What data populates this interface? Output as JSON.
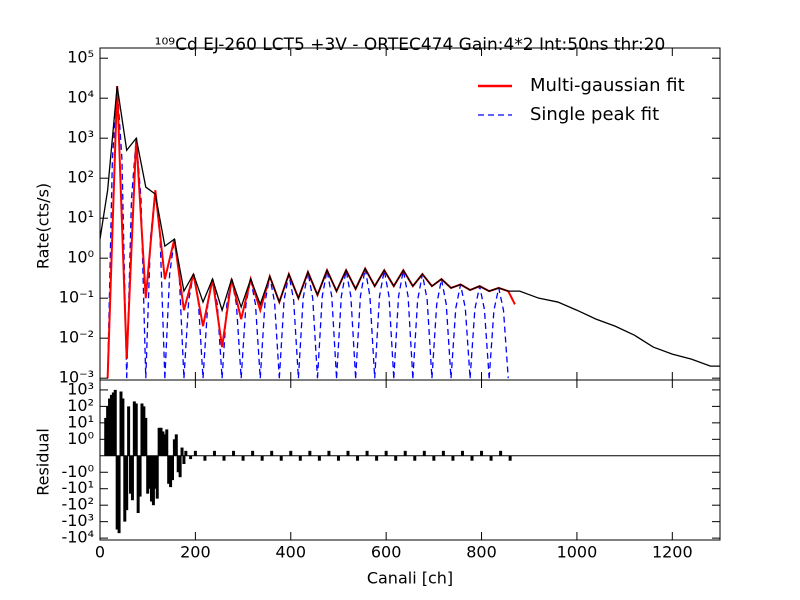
{
  "chart_data": [
    {
      "type": "line",
      "title": "¹⁰⁹Cd EJ-260 LCT5 +3V - ORTEC474 Gain:4*2 Int:50ns thr:20",
      "ylabel": "Rate(cts/s)",
      "xlim": [
        0,
        1300
      ],
      "ylim": [
        0.0009,
        180000
      ],
      "log_y": true,
      "legend": "upper right",
      "yticks": [
        {
          "value": 0.001,
          "label": "10⁻³"
        },
        {
          "value": 0.01,
          "label": "10⁻²"
        },
        {
          "value": 0.1,
          "label": "10⁻¹"
        },
        {
          "value": 1,
          "label": "10⁰"
        },
        {
          "value": 10,
          "label": "10¹"
        },
        {
          "value": 100,
          "label": "10²"
        },
        {
          "value": 1000,
          "label": "10³"
        },
        {
          "value": 10000,
          "label": "10⁴"
        },
        {
          "value": 100000,
          "label": "10⁵"
        }
      ],
      "series": [
        {
          "color": "#000000",
          "x": [
            0,
            16,
            36,
            56,
            76,
            96,
            116,
            136,
            156,
            176,
            196,
            216,
            236,
            256,
            276,
            296,
            316,
            336,
            356,
            376,
            396,
            416,
            436,
            456,
            476,
            496,
            516,
            536,
            556,
            576,
            596,
            616,
            636,
            656,
            676,
            696,
            716,
            736,
            756,
            776,
            796,
            816,
            836,
            856,
            880,
            920,
            960,
            1000,
            1040,
            1080,
            1120,
            1160,
            1200,
            1240,
            1280,
            1300
          ],
          "values": [
            3,
            50,
            20000,
            500,
            1000,
            60,
            40,
            2,
            3,
            0.15,
            0.4,
            0.08,
            0.3,
            0.05,
            0.3,
            0.06,
            0.3,
            0.07,
            0.35,
            0.08,
            0.4,
            0.1,
            0.45,
            0.12,
            0.5,
            0.15,
            0.5,
            0.17,
            0.55,
            0.2,
            0.5,
            0.2,
            0.5,
            0.2,
            0.4,
            0.2,
            0.3,
            0.18,
            0.22,
            0.16,
            0.2,
            0.15,
            0.18,
            0.15,
            0.15,
            0.1,
            0.08,
            0.05,
            0.03,
            0.02,
            0.012,
            0.006,
            0.004,
            0.003,
            0.002,
            0.002
          ]
        },
        {
          "name": "Multi-gaussian fit",
          "color": "#ff0000",
          "x": [
            16,
            36,
            56,
            76,
            96,
            116,
            136,
            156,
            176,
            196,
            216,
            236,
            256,
            276,
            296,
            316,
            336,
            356,
            376,
            396,
            416,
            436,
            456,
            476,
            496,
            516,
            536,
            556,
            576,
            596,
            616,
            636,
            656,
            676,
            696,
            716,
            736,
            756,
            776,
            796,
            816,
            836,
            856,
            870
          ],
          "values": [
            0.001,
            20000,
            0.003,
            1000,
            0.1,
            50,
            0.3,
            3,
            0.05,
            0.4,
            0.02,
            0.3,
            0.006,
            0.3,
            0.03,
            0.3,
            0.05,
            0.35,
            0.08,
            0.4,
            0.1,
            0.45,
            0.12,
            0.5,
            0.15,
            0.5,
            0.17,
            0.55,
            0.2,
            0.5,
            0.2,
            0.5,
            0.2,
            0.4,
            0.2,
            0.3,
            0.18,
            0.22,
            0.16,
            0.2,
            0.15,
            0.18,
            0.15,
            0.07
          ]
        },
        {
          "name": "Single peak fit",
          "color": "#0000ff",
          "linestyle": "dashed",
          "x": [
            16,
            26,
            36,
            46,
            56,
            null,
            56,
            66,
            76,
            86,
            96,
            null,
            96,
            106,
            116,
            126,
            136,
            null,
            136,
            146,
            156,
            166,
            176,
            null,
            176,
            186,
            196,
            206,
            216,
            null,
            216,
            226,
            236,
            246,
            256,
            null,
            256,
            266,
            276,
            286,
            296,
            null,
            296,
            306,
            316,
            326,
            336,
            null,
            336,
            346,
            356,
            366,
            376,
            null,
            376,
            386,
            396,
            406,
            416,
            null,
            416,
            426,
            436,
            446,
            456,
            null,
            456,
            466,
            476,
            486,
            496,
            null,
            496,
            506,
            516,
            526,
            536,
            null,
            536,
            546,
            556,
            566,
            576,
            null,
            576,
            586,
            596,
            606,
            616,
            null,
            616,
            626,
            636,
            646,
            656,
            null,
            656,
            666,
            676,
            686,
            696,
            null,
            696,
            706,
            716,
            726,
            736,
            null,
            736,
            746,
            756,
            766,
            776,
            null,
            776,
            786,
            796,
            806,
            816,
            null,
            816,
            826,
            836,
            846,
            856
          ],
          "values": [
            0.001,
            300,
            20000,
            300,
            0.001,
            null,
            0.001,
            30,
            1000,
            30,
            0.001,
            null,
            0.001,
            3.3,
            50,
            3.3,
            0.001,
            null,
            0.001,
            0.4,
            3,
            0.4,
            0.001,
            null,
            0.001,
            0.09,
            0.4,
            0.09,
            0.001,
            null,
            0.001,
            0.07,
            0.3,
            0.07,
            0.001,
            null,
            0.001,
            0.07,
            0.3,
            0.07,
            0.001,
            null,
            0.001,
            0.07,
            0.3,
            0.07,
            0.001,
            null,
            0.001,
            0.08,
            0.35,
            0.08,
            0.001,
            null,
            0.001,
            0.09,
            0.4,
            0.09,
            0.001,
            null,
            0.001,
            0.1,
            0.45,
            0.1,
            0.001,
            null,
            0.001,
            0.11,
            0.5,
            0.11,
            0.001,
            null,
            0.001,
            0.11,
            0.5,
            0.11,
            0.001,
            null,
            0.001,
            0.11,
            0.55,
            0.11,
            0.001,
            null,
            0.001,
            0.11,
            0.5,
            0.11,
            0.001,
            null,
            0.001,
            0.11,
            0.5,
            0.11,
            0.001,
            null,
            0.001,
            0.09,
            0.4,
            0.09,
            0.001,
            null,
            0.001,
            0.07,
            0.3,
            0.07,
            0.001,
            null,
            0.001,
            0.056,
            0.22,
            0.056,
            0.001,
            null,
            0.001,
            0.053,
            0.2,
            0.053,
            0.001,
            null,
            0.001,
            0.05,
            0.18,
            0.05,
            0.001
          ]
        }
      ]
    },
    {
      "type": "bar",
      "xlabel": "Canali [ch]",
      "ylabel": "Residual",
      "yscale": "symlog",
      "color": "#000000",
      "xlim": [
        0,
        1300
      ],
      "xticks": [
        0,
        200,
        400,
        600,
        800,
        1000,
        1200
      ],
      "ylim": [
        -13000,
        4000
      ],
      "yticks": [
        {
          "value": 1000,
          "label": "10³"
        },
        {
          "value": 100,
          "label": "10²"
        },
        {
          "value": 10,
          "label": "10¹"
        },
        {
          "value": 1,
          "label": "10⁰"
        },
        {
          "value": -1,
          "label": "-10⁰"
        },
        {
          "value": -10,
          "label": "-10¹"
        },
        {
          "value": -100,
          "label": "-10²"
        },
        {
          "value": -1000,
          "label": "-10³"
        },
        {
          "value": -10000,
          "label": "-10⁴"
        }
      ],
      "x": [
        12,
        16,
        20,
        24,
        28,
        32,
        36,
        40,
        44,
        48,
        52,
        56,
        60,
        64,
        68,
        72,
        76,
        80,
        84,
        88,
        92,
        96,
        100,
        104,
        108,
        112,
        116,
        120,
        124,
        128,
        132,
        136,
        140,
        144,
        148,
        152,
        156,
        160,
        164,
        168,
        172,
        176,
        180,
        190,
        200,
        220,
        240,
        260,
        280,
        300,
        320,
        340,
        360,
        380,
        400,
        420,
        440,
        460,
        480,
        500,
        520,
        540,
        560,
        580,
        600,
        620,
        640,
        660,
        680,
        700,
        720,
        740,
        760,
        780,
        800,
        820,
        840,
        860
      ],
      "values": [
        20,
        100,
        300,
        500,
        700,
        1000,
        -3000,
        -5000,
        800,
        300,
        -1000,
        -200,
        100,
        -20,
        -50,
        200,
        150,
        -300,
        -30,
        150,
        100,
        20,
        -20,
        -10,
        -60,
        -100,
        -10,
        -40,
        5,
        5,
        3,
        2,
        4,
        -5,
        -8,
        -3,
        1,
        2,
        -1,
        -2,
        0.5,
        -0.5,
        0.3,
        -0.2,
        0.3,
        -0.3,
        0.3,
        -0.3,
        0.3,
        -0.3,
        0.3,
        -0.3,
        0.3,
        -0.3,
        0.3,
        -0.3,
        0.3,
        -0.3,
        0.3,
        -0.3,
        0.3,
        -0.3,
        0.3,
        -0.3,
        0.3,
        -0.3,
        0.3,
        -0.3,
        0.3,
        -0.3,
        0.3,
        -0.3,
        0.3,
        -0.3,
        0.3,
        -0.3,
        0.3,
        -0.3
      ]
    }
  ]
}
